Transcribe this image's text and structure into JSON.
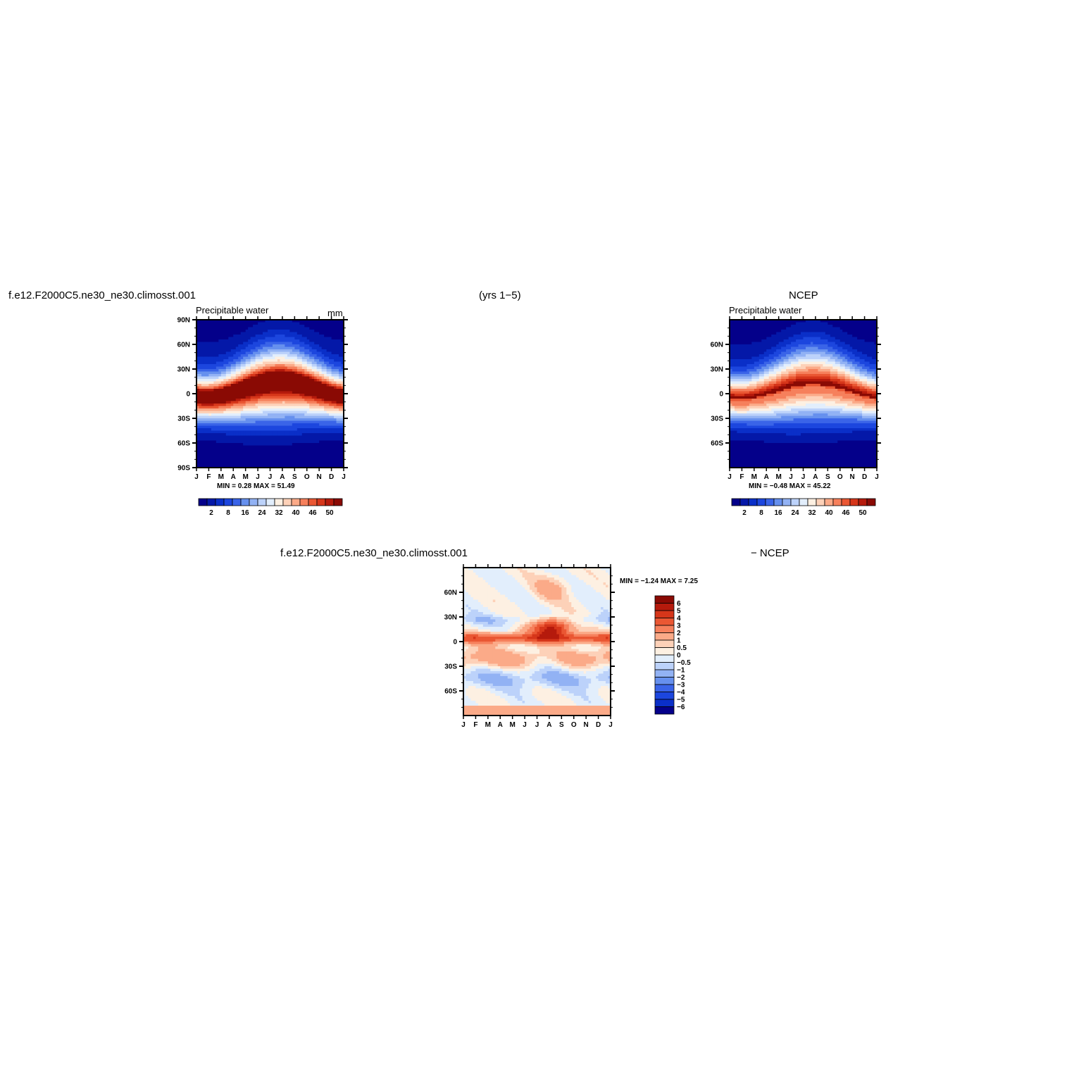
{
  "page": {
    "case_name": "f.e12.F2000C5.ne30_ne30.climosst.001",
    "years_label": "(yrs  1−5)",
    "obs_name": "NCEP",
    "diff_case_name": "f.e12.F2000C5.ne30_ne30.climosst.001",
    "diff_obs_label": "−  NCEP"
  },
  "palettes": {
    "main": [
      "#04008a",
      "#0418a8",
      "#0a2fc8",
      "#1c46de",
      "#3a64e8",
      "#6690ee",
      "#92b2f4",
      "#bcd2fa",
      "#e2eefc",
      "#fdf0e2",
      "#fdd1b8",
      "#fbaa88",
      "#f6805c",
      "#ea5733",
      "#d6361a",
      "#b51a0c",
      "#8a0a04"
    ],
    "diff": [
      "#8a0a04",
      "#b51a0c",
      "#d6361a",
      "#ea5733",
      "#f6805c",
      "#fbaa88",
      "#fdd1b8",
      "#fdf0e2",
      "#e2eefc",
      "#bcd2fa",
      "#92b2f4",
      "#6690ee",
      "#3a64e8",
      "#1c46de",
      "#0a2fc8",
      "#04008a"
    ]
  },
  "chart_data": [
    {
      "type": "heatmap",
      "title": "Precipitable water",
      "units": "mm",
      "x_ticks": [
        "J",
        "F",
        "M",
        "A",
        "M",
        "J",
        "J",
        "A",
        "S",
        "O",
        "N",
        "D",
        "J"
      ],
      "y_ticks": [
        "90N",
        "60N",
        "30N",
        "0",
        "30S",
        "60S",
        "90S"
      ],
      "ylim": [
        -90,
        90
      ],
      "min_max_label": "MIN =     0.28  MAX =    51.49",
      "colorbar_labels": [
        "2",
        "8",
        "16",
        "24",
        "32",
        "40",
        "46",
        "50"
      ],
      "field": {
        "peak": 51,
        "nh_peak": 46,
        "sh_edge": 2,
        "nh_edge": 5
      }
    },
    {
      "type": "heatmap",
      "title": "Precipitable water",
      "x_ticks": [
        "J",
        "F",
        "M",
        "A",
        "M",
        "J",
        "J",
        "A",
        "S",
        "O",
        "N",
        "D",
        "J"
      ],
      "y_ticks": [
        "60N",
        "30N",
        "0",
        "30S",
        "60S"
      ],
      "ylim": [
        -90,
        90
      ],
      "min_max_label": "MIN =    −0.48  MAX =    45.22",
      "colorbar_labels": [
        "2",
        "8",
        "16",
        "24",
        "32",
        "40",
        "46",
        "50"
      ],
      "field": {
        "peak": 44,
        "nh_peak": 40,
        "sh_edge": 2,
        "nh_edge": 4
      }
    },
    {
      "type": "heatmap",
      "x_ticks": [
        "J",
        "F",
        "M",
        "A",
        "M",
        "J",
        "J",
        "A",
        "S",
        "O",
        "N",
        "D",
        "J"
      ],
      "y_ticks": [
        "60N",
        "30N",
        "0",
        "30S",
        "60S"
      ],
      "ylim": [
        -90,
        90
      ],
      "min_max_label": "MIN =    −1.24  MAX =     7.25",
      "colorbar_labels": [
        "6",
        "5",
        "4",
        "3",
        "2",
        "1",
        "0.5",
        "0",
        "−0.5",
        "−1",
        "−2",
        "−3",
        "−4",
        "−5",
        "−6"
      ]
    }
  ]
}
